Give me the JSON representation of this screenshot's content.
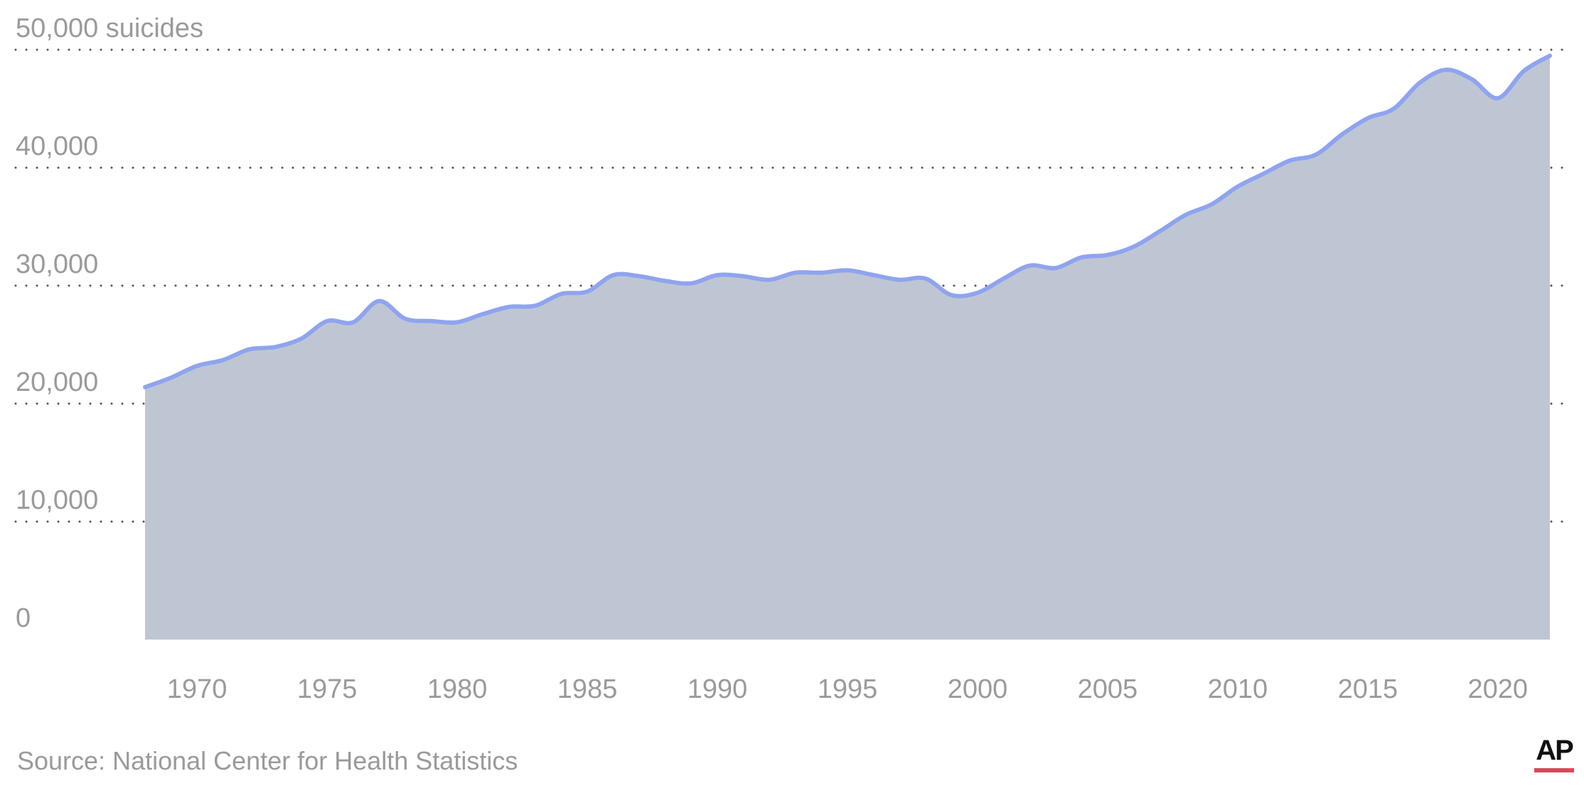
{
  "chart_data": {
    "type": "area",
    "ylabel": "suicides",
    "ylim": [
      0,
      50000
    ],
    "yticks": [
      {
        "value": 50000,
        "label": "50,000 suicides"
      },
      {
        "value": 40000,
        "label": "40,000"
      },
      {
        "value": 30000,
        "label": "30,000"
      },
      {
        "value": 20000,
        "label": "20,000"
      },
      {
        "value": 10000,
        "label": "10,000"
      },
      {
        "value": 0,
        "label": "0"
      }
    ],
    "xlim": [
      1968,
      2022
    ],
    "xticks": [
      "1970",
      "1975",
      "1980",
      "1985",
      "1990",
      "1995",
      "2000",
      "2005",
      "2010",
      "2015",
      "2020"
    ],
    "grid": true,
    "series": [
      {
        "x": [
          1968,
          1969,
          1970,
          1971,
          1972,
          1973,
          1974,
          1975,
          1976,
          1977,
          1978,
          1979,
          1980,
          1981,
          1982,
          1983,
          1984,
          1985,
          1986,
          1987,
          1988,
          1989,
          1990,
          1991,
          1992,
          1993,
          1994,
          1995,
          1996,
          1997,
          1998,
          1999,
          2000,
          2001,
          2002,
          2003,
          2004,
          2005,
          2006,
          2007,
          2008,
          2009,
          2010,
          2011,
          2012,
          2013,
          2014,
          2015,
          2016,
          2017,
          2018,
          2019,
          2020,
          2021,
          2022
        ],
        "values": [
          21400,
          22200,
          23200,
          23700,
          24600,
          24800,
          25500,
          27000,
          26900,
          28700,
          27200,
          27000,
          26900,
          27600,
          28200,
          28300,
          29300,
          29500,
          30900,
          30800,
          30400,
          30200,
          30900,
          30800,
          30500,
          31100,
          31100,
          31300,
          30900,
          30500,
          30600,
          29200,
          29400,
          30600,
          31700,
          31500,
          32400,
          32600,
          33300,
          34600,
          36000,
          36900,
          38400,
          39500,
          40600,
          41100,
          42800,
          44200,
          45000,
          47200,
          48300,
          47500,
          45900,
          48200,
          49500
        ]
      }
    ],
    "colors": {
      "area": "#bfc6d3",
      "line": "#8fa4ef"
    }
  },
  "source": "Source: National Center for Health Statistics",
  "logo": {
    "text": "AP",
    "accent": "#e0445a"
  }
}
